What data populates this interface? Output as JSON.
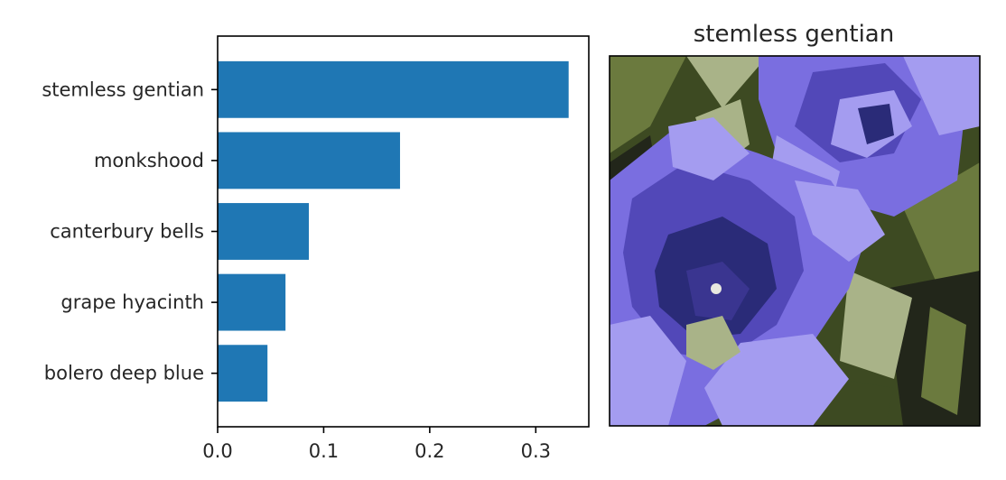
{
  "chart_data": [
    {
      "type": "bar",
      "orientation": "horizontal",
      "categories": [
        "stemless gentian",
        "monkshood",
        "canterbury bells",
        "grape hyacinth",
        "bolero deep blue"
      ],
      "values": [
        0.331,
        0.172,
        0.086,
        0.064,
        0.047
      ],
      "xlim": [
        0.0,
        0.35
      ],
      "xticks": [
        "0.0",
        "0.1",
        "0.2",
        "0.3"
      ],
      "xtick_values": [
        0.0,
        0.1,
        0.2,
        0.3
      ],
      "bar_color": "#1f77b4",
      "grid": false
    }
  ],
  "image_panel": {
    "title": "stemless gentian",
    "subject": "gentian-flower-photo",
    "colors": {
      "petal_dark": "#5248b8",
      "petal_mid": "#7a6ee0",
      "petal_light": "#a49cf0",
      "throat": "#2a2b78",
      "leaf_dark": "#3d4a22",
      "leaf_mid": "#6b7a3e",
      "leaf_light": "#a9b388",
      "shadow": "#22261a"
    }
  }
}
